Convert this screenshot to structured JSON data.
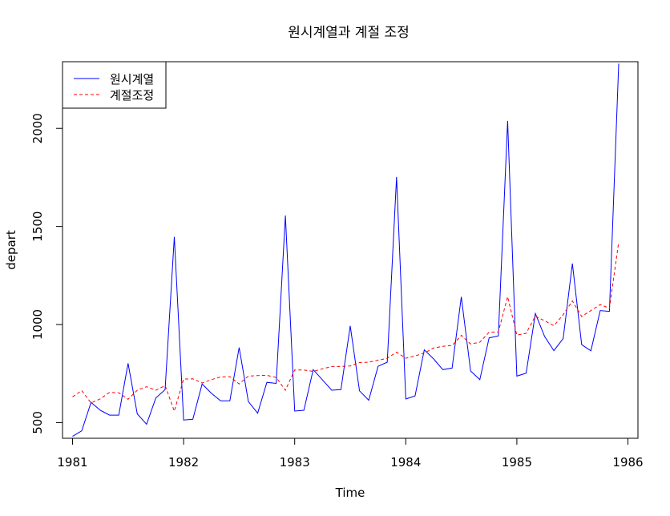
{
  "chart_data": {
    "type": "line",
    "title": "원시계열과 계절 조정",
    "xlabel": "Time",
    "ylabel": "depart",
    "xlim": [
      1980.91,
      1986.09
    ],
    "ylim": [
      420,
      2340
    ],
    "x_ticks": [
      1981,
      1982,
      1983,
      1984,
      1985,
      1986
    ],
    "y_ticks": [
      500,
      1000,
      1500,
      2000
    ],
    "grid": false,
    "legend_position": "top-left",
    "x_start": 1981,
    "x_step": 0.0833333,
    "series": [
      {
        "name": "원시계열",
        "color": "#0000ff",
        "style": "solid",
        "values": [
          430,
          458,
          603,
          563,
          538,
          538,
          802,
          544,
          492,
          625,
          668,
          1447,
          513,
          517,
          697,
          650,
          611,
          611,
          883,
          607,
          548,
          705,
          700,
          1556,
          559,
          563,
          770,
          718,
          665,
          668,
          993,
          662,
          614,
          787,
          808,
          1752,
          620,
          636,
          871,
          825,
          770,
          778,
          1141,
          763,
          719,
          932,
          942,
          2038,
          737,
          752,
          1056,
          939,
          867,
          928,
          1311,
          897,
          866,
          1071,
          1067,
          2330
        ]
      },
      {
        "name": "계절조정",
        "color": "#ff0000",
        "style": "dashed",
        "values": [
          631,
          663,
          600,
          621,
          654,
          652,
          619,
          665,
          683,
          665,
          689,
          558,
          722,
          723,
          702,
          719,
          733,
          734,
          697,
          737,
          740,
          741,
          730,
          665,
          768,
          768,
          761,
          774,
          786,
          786,
          789,
          806,
          808,
          818,
          828,
          859,
          828,
          840,
          855,
          880,
          889,
          893,
          945,
          901,
          910,
          961,
          962,
          1142,
          946,
          955,
          1043,
          1019,
          994,
          1050,
          1120,
          1041,
          1071,
          1102,
          1083,
          1421
        ]
      }
    ]
  }
}
